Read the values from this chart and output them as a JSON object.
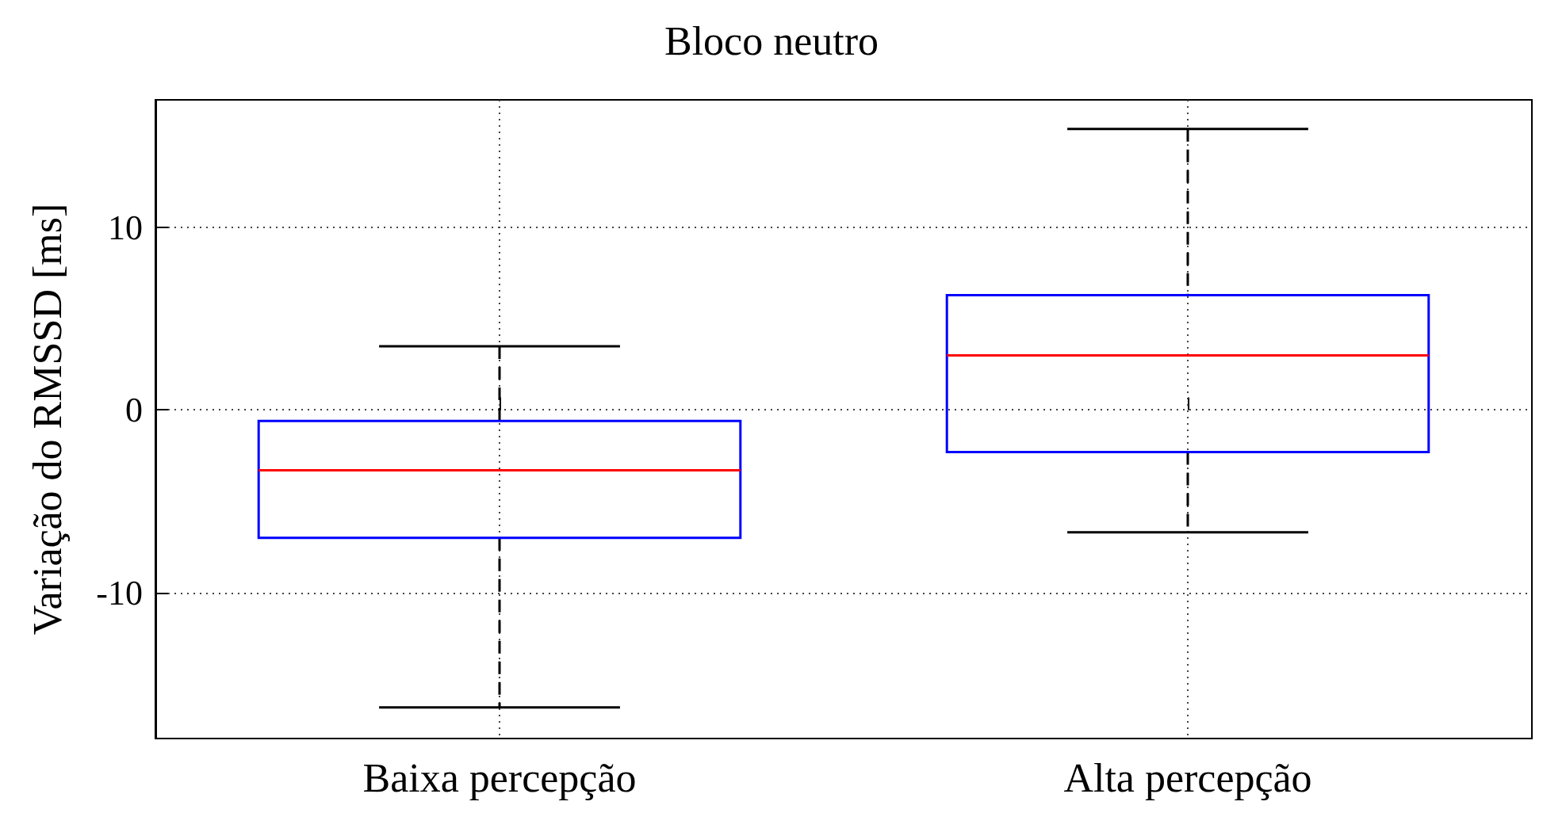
{
  "chart_data": {
    "type": "box",
    "title": "Bloco neutro",
    "ylabel": "Variação do RMSSD [ms]",
    "categories": [
      "Baixa percepção",
      "Alta percepção"
    ],
    "boxes": [
      {
        "low": -16.3,
        "q1": -7.0,
        "median": -3.3,
        "q3": -0.6,
        "high": 3.5
      },
      {
        "low": -6.7,
        "q1": -2.3,
        "median": 3.0,
        "q3": 6.3,
        "high": 15.4
      }
    ],
    "color": "#0000ff",
    "ylim": [
      -18,
      17
    ],
    "yticks": [
      -10,
      0,
      10
    ],
    "grid": true,
    "line_style": "dashed"
  }
}
